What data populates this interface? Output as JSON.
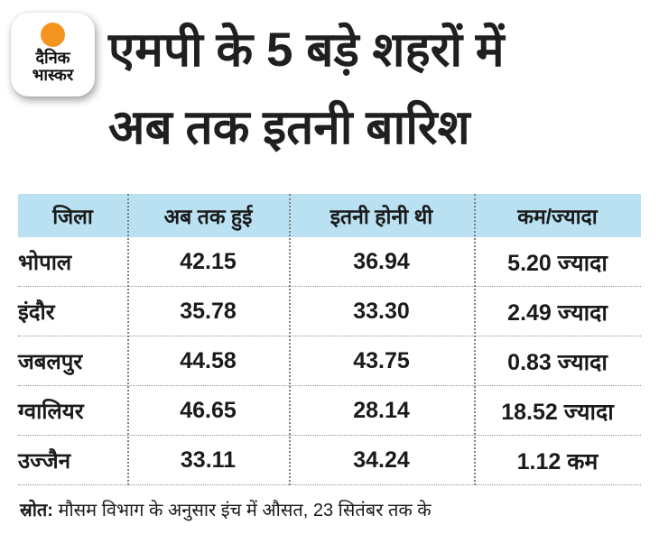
{
  "brand": {
    "logo_line1": "दैनिक",
    "logo_line2": "भास्कर",
    "dot_color": "#F3941E"
  },
  "title": {
    "line1": "एमपी के 5 बड़े शहरों में",
    "line2": "अब तक इतनी बारिश"
  },
  "table": {
    "header_bg": "#B9E1F2",
    "text_color": "#1A1A1A",
    "headers": [
      "जिला",
      "अब तक हुई",
      "इतनी होनी थी",
      "कम/ज्यादा"
    ],
    "rows": [
      {
        "district": "भोपाल",
        "actual": "42.15",
        "expected": "36.94",
        "diff": "5.20 ज्यादा"
      },
      {
        "district": "इंदौर",
        "actual": "35.78",
        "expected": "33.30",
        "diff": "2.49 ज्यादा"
      },
      {
        "district": "जबलपुर",
        "actual": "44.58",
        "expected": "43.75",
        "diff": "0.83 ज्यादा"
      },
      {
        "district": "ग्वालियर",
        "actual": "46.65",
        "expected": "28.14",
        "diff": "18.52 ज्यादा"
      },
      {
        "district": "उज्जैन",
        "actual": "33.11",
        "expected": "34.24",
        "diff": "1.12 कम"
      }
    ]
  },
  "footer": {
    "source_label": "स्रोत:",
    "source_text": " मौसम विभाग के अनुसार इंच में औसत, 23 सितंबर तक के"
  },
  "chart_data": {
    "type": "table",
    "title": "एमपी के 5 बड़े शहरों में अब तक इतनी बारिश",
    "columns": [
      "जिला",
      "अब तक हुई",
      "इतनी होनी थी",
      "कम/ज्यादा"
    ],
    "rows": [
      [
        "भोपाल",
        42.15,
        36.94,
        "5.20 ज्यादा"
      ],
      [
        "इंदौर",
        35.78,
        33.3,
        "2.49 ज्यादा"
      ],
      [
        "जबलपुर",
        44.58,
        43.75,
        "0.83 ज्यादा"
      ],
      [
        "ग्वालियर",
        46.65,
        28.14,
        "18.52 ज्यादा"
      ],
      [
        "उज्जैन",
        33.11,
        34.24,
        "1.12 कम"
      ]
    ],
    "note": "स्रोत: मौसम विभाग के अनुसार इंच में औसत, 23 सितंबर तक के"
  }
}
